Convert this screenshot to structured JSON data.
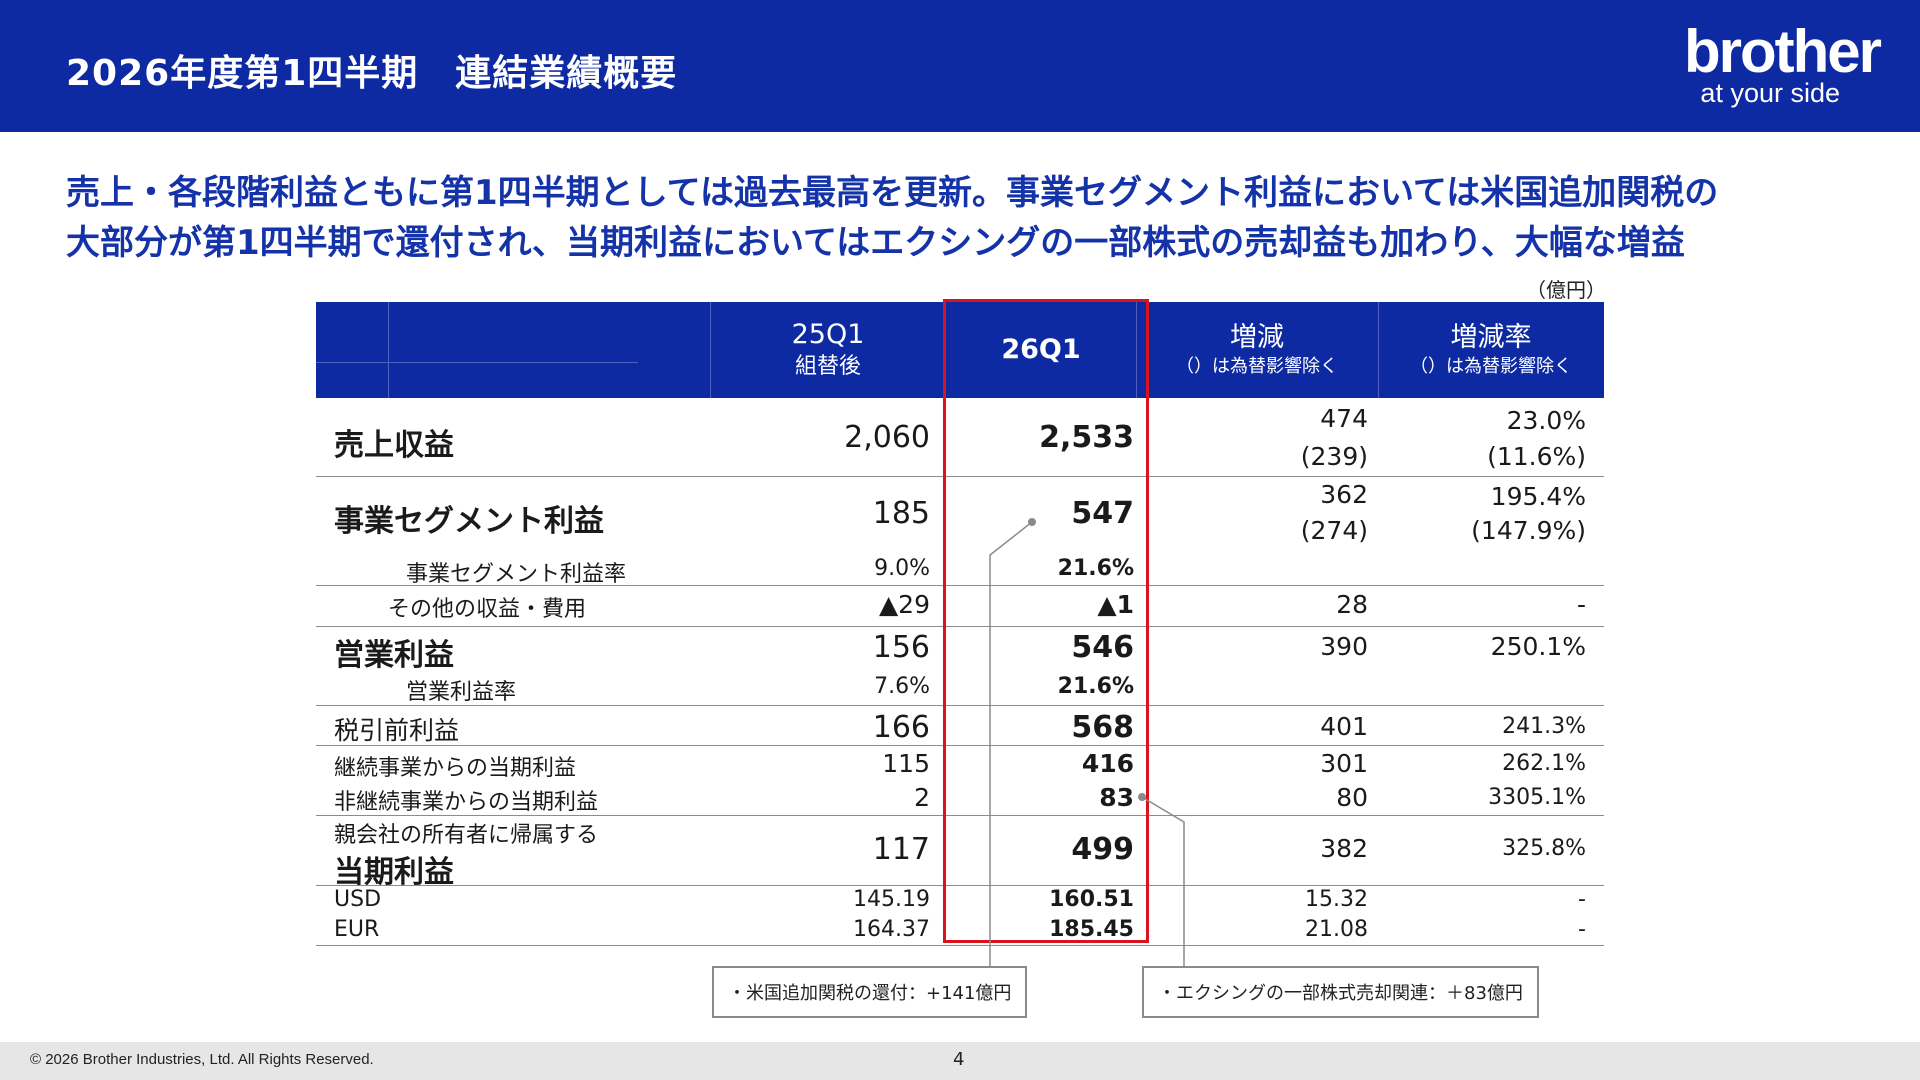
{
  "header": {
    "title": "2026年度第1四半期　連結業績概要"
  },
  "logo": {
    "brand": "brother",
    "tagline": "at your side"
  },
  "headline": {
    "line1": "売上・各段階利益ともに第1四半期としては過去最高を更新。事業セグメント利益においては米国追加関税の",
    "line2": "大部分が第1四半期で還付され、当期利益においてはエクシングの一部株式の売却益も加わり、大幅な増益"
  },
  "unit": "（億円）",
  "columns": {
    "prev": {
      "main": "25Q1",
      "sub": "組替後"
    },
    "curr": {
      "main": "26Q1"
    },
    "diff": {
      "main": "増減",
      "note": "（）は為替影響除く"
    },
    "rate": {
      "main": "増減率",
      "note": "（）は為替影響除く"
    }
  },
  "rows": {
    "revenue": {
      "label": "売上収益",
      "prev": "2,060",
      "curr": "2,533",
      "diff": "474",
      "diff_fx": "(239)",
      "rate": "23.0%",
      "rate_fx": "(11.6%)"
    },
    "segment": {
      "label": "事業セグメント利益",
      "prev": "185",
      "curr": "547",
      "diff": "362",
      "diff_fx": "(274)",
      "rate": "195.4%",
      "rate_fx": "(147.9%)"
    },
    "segment_margin": {
      "label": "事業セグメント利益率",
      "prev": "9.0%",
      "curr": "21.6%"
    },
    "other": {
      "label": "その他の収益・費用",
      "prev": "▲29",
      "curr": "▲1",
      "diff": "28",
      "rate": "-"
    },
    "operating": {
      "label": "営業利益",
      "prev": "156",
      "curr": "546",
      "diff": "390",
      "rate": "250.1%"
    },
    "operating_margin": {
      "label": "営業利益率",
      "prev": "7.6%",
      "curr": "21.6%"
    },
    "pretax": {
      "label": "税引前利益",
      "prev": "166",
      "curr": "568",
      "diff": "401",
      "rate": "241.3%"
    },
    "continuing": {
      "label": "継続事業からの当期利益",
      "prev": "115",
      "curr": "416",
      "diff": "301",
      "rate": "262.1%"
    },
    "discontinued": {
      "label": "非継続事業からの当期利益",
      "prev": "2",
      "curr": "83",
      "diff": "80",
      "rate": "3305.1%"
    },
    "net": {
      "label_top": "親会社の所有者に帰属する",
      "label_bottom": "当期利益",
      "prev": "117",
      "curr": "499",
      "diff": "382",
      "rate": "325.8%"
    },
    "usd": {
      "label": "USD",
      "prev": "145.19",
      "curr": "160.51",
      "diff": "15.32",
      "rate": "-"
    },
    "eur": {
      "label": "EUR",
      "prev": "164.37",
      "curr": "185.45",
      "diff": "21.08",
      "rate": "-"
    }
  },
  "callouts": {
    "tariff": "・米国追加関税の還付：+141億円",
    "xing": "・エクシングの一部株式売却関連：＋83億円"
  },
  "footer": {
    "copyright": "© 2026 Brother Industries, Ltd. All Rights Reserved.",
    "page": "4"
  },
  "colors": {
    "navy": "#0d2aa3",
    "headline": "#1533a8",
    "highlight_box": "#d9141c"
  }
}
